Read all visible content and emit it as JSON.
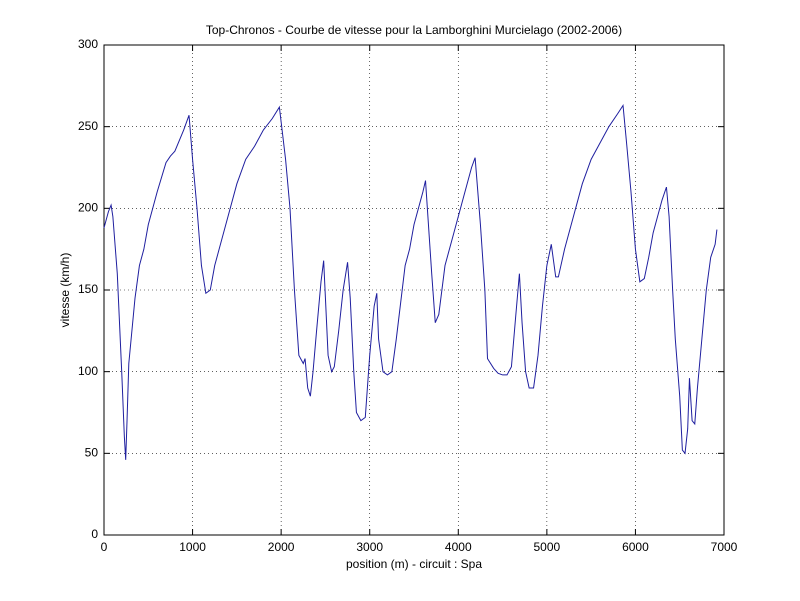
{
  "chart_data": {
    "type": "line",
    "title": "Top-Chronos - Courbe de vitesse pour la Lamborghini Murcielago (2002-2006)",
    "x_label": "position (m) - circuit : Spa",
    "y_label": "vitesse (km/h)",
    "color": "#1f1f9f",
    "x": [
      0,
      50,
      80,
      100,
      150,
      200,
      230,
      245,
      260,
      280,
      350,
      400,
      450,
      500,
      600,
      700,
      750,
      800,
      900,
      960,
      1000,
      1050,
      1100,
      1150,
      1200,
      1250,
      1300,
      1400,
      1500,
      1600,
      1700,
      1800,
      1900,
      1980,
      2050,
      2100,
      2150,
      2200,
      2250,
      2270,
      2300,
      2330,
      2360,
      2400,
      2450,
      2480,
      2500,
      2530,
      2570,
      2600,
      2650,
      2700,
      2750,
      2780,
      2820,
      2850,
      2900,
      2950,
      3000,
      3050,
      3080,
      3100,
      3150,
      3200,
      3250,
      3300,
      3400,
      3450,
      3500,
      3600,
      3630,
      3700,
      3740,
      3780,
      3850,
      3950,
      4050,
      4150,
      4190,
      4250,
      4300,
      4330,
      4400,
      4450,
      4500,
      4550,
      4600,
      4650,
      4690,
      4720,
      4760,
      4800,
      4850,
      4900,
      4950,
      5000,
      5050,
      5100,
      5130,
      5200,
      5300,
      5400,
      5500,
      5600,
      5700,
      5800,
      5860,
      5900,
      5950,
      6000,
      6050,
      6100,
      6150,
      6200,
      6300,
      6350,
      6380,
      6420,
      6450,
      6500,
      6530,
      6560,
      6590,
      6610,
      6640,
      6670,
      6700,
      6750,
      6800,
      6850,
      6900,
      6920
    ],
    "values": [
      188,
      198,
      202,
      195,
      160,
      100,
      60,
      46,
      70,
      105,
      145,
      165,
      175,
      190,
      210,
      228,
      232,
      235,
      248,
      257,
      230,
      200,
      165,
      148,
      150,
      165,
      175,
      195,
      215,
      230,
      238,
      248,
      255,
      262,
      230,
      200,
      150,
      110,
      105,
      108,
      90,
      85,
      100,
      125,
      155,
      168,
      145,
      110,
      100,
      103,
      125,
      150,
      167,
      145,
      100,
      75,
      70,
      72,
      110,
      140,
      148,
      120,
      100,
      98,
      100,
      120,
      165,
      175,
      190,
      210,
      217,
      160,
      130,
      135,
      165,
      185,
      205,
      225,
      231,
      190,
      150,
      108,
      102,
      99,
      98,
      98,
      103,
      135,
      160,
      130,
      100,
      90,
      90,
      110,
      140,
      165,
      178,
      158,
      158,
      175,
      195,
      215,
      230,
      240,
      250,
      258,
      263,
      240,
      210,
      175,
      155,
      157,
      170,
      185,
      205,
      213,
      195,
      150,
      120,
      85,
      52,
      50,
      65,
      96,
      70,
      68,
      90,
      120,
      150,
      170,
      178,
      187
    ],
    "xlim": [
      0,
      7000
    ],
    "xticks": [
      0,
      1000,
      2000,
      3000,
      4000,
      5000,
      6000,
      7000
    ],
    "ylim": [
      0,
      300
    ],
    "yticks": [
      0,
      50,
      100,
      150,
      200,
      250,
      300
    ],
    "grid": true
  }
}
